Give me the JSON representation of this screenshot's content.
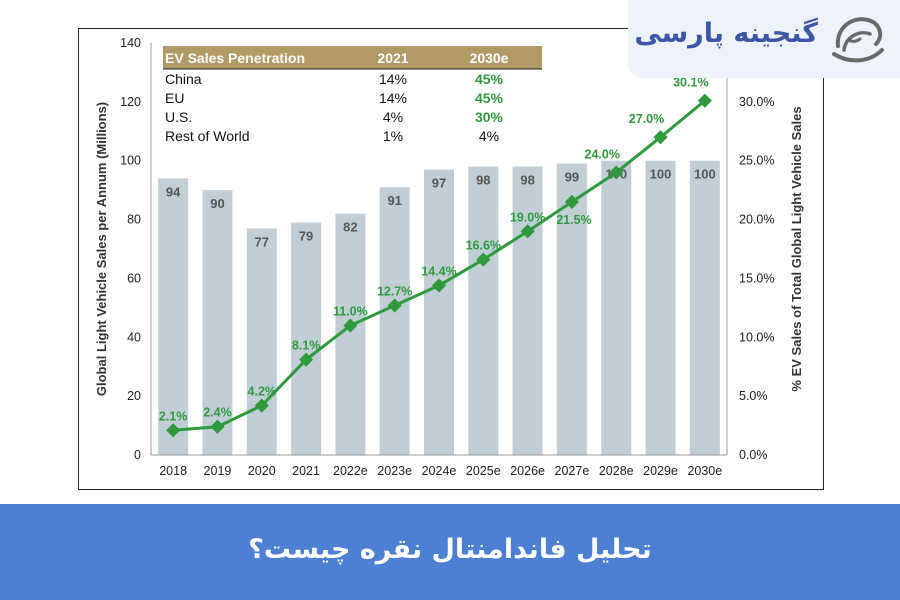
{
  "logo": {
    "text": "گنجینه پارسی",
    "icon": "swirl-logo-icon"
  },
  "banner": {
    "title": "تحلیل فاندامنتال نقره چیست؟"
  },
  "colors": {
    "bar": "#c1ced6",
    "line": "#2e9a3c",
    "table_header": "#b09a66",
    "banner": "#4d7fd3"
  },
  "table": {
    "headers": [
      "EV Sales Penetration",
      "2021",
      "2030e"
    ],
    "rows": [
      [
        "China",
        "14%",
        "45%"
      ],
      [
        "EU",
        "14%",
        "45%"
      ],
      [
        "U.S.",
        "4%",
        "30%"
      ],
      [
        "Rest of World",
        "1%",
        "4%"
      ]
    ]
  },
  "chart_data": {
    "type": "bar",
    "ylabel": "Global Light Vehicle Sales per Annum (Millions)",
    "ylabel_right": "% EV Sales of Total Global Light Vehicle Sales",
    "categories": [
      "2018",
      "2019",
      "2020",
      "2021",
      "2022e",
      "2023e",
      "2024e",
      "2025e",
      "2026e",
      "2027e",
      "2028e",
      "2029e",
      "2030e"
    ],
    "ylim": [
      0,
      140
    ],
    "yticks": [
      "0",
      "20",
      "40",
      "60",
      "80",
      "100",
      "120",
      "140"
    ],
    "ylim_right": [
      0,
      35
    ],
    "yticks_right": [
      "0.0%",
      "5.0%",
      "10.0%",
      "15.0%",
      "20.0%",
      "25.0%",
      "30.0%"
    ],
    "grid": false,
    "series": [
      {
        "type": "bar",
        "values": [
          94,
          90,
          77,
          79,
          82,
          91,
          97,
          98,
          98,
          99,
          100,
          100,
          100
        ],
        "labels": [
          "94",
          "90",
          "77",
          "79",
          "82",
          "91",
          "97",
          "98",
          "98",
          "99",
          "100",
          "100",
          "100"
        ]
      },
      {
        "type": "line",
        "axis": "right",
        "values": [
          2.1,
          2.4,
          4.2,
          8.1,
          11.0,
          12.7,
          14.4,
          16.6,
          19.0,
          21.5,
          24.0,
          27.0,
          30.1
        ],
        "labels": [
          "2.1%",
          "2.4%",
          "4.2%",
          "8.1%",
          "11.0%",
          "12.7%",
          "14.4%",
          "16.6%",
          "19.0%",
          "21.5%",
          "24.0%",
          "27.0%",
          "30.1%"
        ]
      }
    ]
  }
}
